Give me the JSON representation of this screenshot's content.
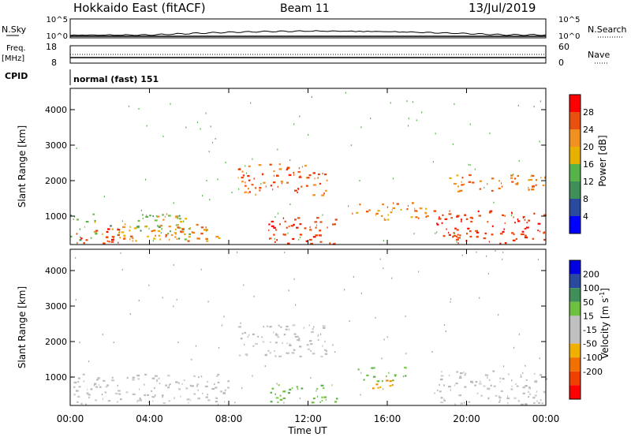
{
  "header": {
    "station": "Hokkaido East (fitACF)",
    "beam": "Beam 11",
    "date": "13/Jul/2019"
  },
  "top_panels": {
    "nsky_label": "N.Sky",
    "nsky_ticks": [
      "10^5",
      "10^0"
    ],
    "nsearch_label": "N.Search",
    "nsearch_ticks": [
      "10^5",
      "10^0"
    ],
    "freq_label": "Freq.",
    "freq_unit": "[MHz]",
    "freq_ticks": [
      "18",
      "8"
    ],
    "nave_label": "Nave",
    "nave_ticks": [
      "60",
      "0"
    ],
    "cpid_label": "CPID",
    "cpid_text": "normal (fast) 151"
  },
  "colors": {
    "power": [
      "#0000ff",
      "#2a4aa0",
      "#3f8f5a",
      "#55b34a",
      "#e8b000",
      "#f09020",
      "#e85010",
      "#ff0000"
    ],
    "velocity": [
      "#0000e0",
      "#2a4aa0",
      "#3f8f5a",
      "#70c040",
      "#c0c0c0",
      "#c0c0c0",
      "#f0b000",
      "#f07000",
      "#f04000",
      "#ff0000"
    ],
    "ground_scatter": "#bebebe"
  },
  "chart_data": [
    {
      "type": "heatmap",
      "title": "",
      "xlabel": "",
      "ylabel": "Slant Range [km]",
      "x_ticks": [
        "00:00",
        "04:00",
        "08:00",
        "12:00",
        "16:00",
        "20:00",
        "00:00"
      ],
      "xlim_hours": [
        0,
        24
      ],
      "y_ticks": [
        1000,
        2000,
        3000,
        4000
      ],
      "ylim": [
        200,
        4600
      ],
      "colorbar_label": "Power [dB]",
      "colorbar_ticks": [
        "4",
        "8",
        "12",
        "16",
        "20",
        "24",
        "28"
      ],
      "colorbar_range": [
        0,
        32
      ],
      "regions": [
        {
          "t0": 0.0,
          "t1": 6.0,
          "r0": 350,
          "r1": 1100,
          "level": "green-yellow"
        },
        {
          "t0": 0.2,
          "t1": 2.5,
          "r0": 250,
          "r1": 700,
          "level": "red"
        },
        {
          "t0": 2.5,
          "t1": 7.5,
          "r0": 300,
          "r1": 800,
          "level": "orange"
        },
        {
          "t0": 8.4,
          "t1": 13.0,
          "r0": 1600,
          "r1": 2500,
          "level": "red-orange"
        },
        {
          "t0": 10.0,
          "t1": 13.5,
          "r0": 220,
          "r1": 1000,
          "level": "red"
        },
        {
          "t0": 14.0,
          "t1": 18.0,
          "r0": 900,
          "r1": 1400,
          "level": "orange"
        },
        {
          "t0": 18.3,
          "t1": 24.0,
          "r0": 250,
          "r1": 1200,
          "level": "red"
        },
        {
          "t0": 19.0,
          "t1": 24.0,
          "r0": 1700,
          "r1": 2200,
          "level": "orange"
        }
      ]
    },
    {
      "type": "heatmap",
      "title": "",
      "xlabel": "Time UT",
      "ylabel": "Slant Range [km]",
      "x_ticks": [
        "00:00",
        "04:00",
        "08:00",
        "12:00",
        "16:00",
        "20:00",
        "00:00"
      ],
      "xlim_hours": [
        0,
        24
      ],
      "y_ticks": [
        1000,
        2000,
        3000,
        4000
      ],
      "ylim": [
        200,
        4600
      ],
      "colorbar_label": "Velocity [m s",
      "colorbar_label_sup": "-1",
      "colorbar_label_end": "]",
      "colorbar_ticks": [
        "200",
        "100",
        "50",
        "15",
        "-15",
        "-50",
        "-100",
        "-200"
      ],
      "regions": [
        {
          "t0": 0.0,
          "t1": 8.0,
          "r0": 250,
          "r1": 1100,
          "level": "gray"
        },
        {
          "t0": 8.4,
          "t1": 13.0,
          "r0": 1600,
          "r1": 2500,
          "level": "gray"
        },
        {
          "t0": 10.0,
          "t1": 13.5,
          "r0": 300,
          "r1": 800,
          "level": "green"
        },
        {
          "t0": 14.5,
          "t1": 17.0,
          "r0": 900,
          "r1": 1300,
          "level": "green"
        },
        {
          "t0": 14.8,
          "t1": 16.5,
          "r0": 700,
          "r1": 950,
          "level": "orange"
        },
        {
          "t0": 18.3,
          "t1": 24.0,
          "r0": 250,
          "r1": 1200,
          "level": "gray"
        }
      ]
    }
  ]
}
